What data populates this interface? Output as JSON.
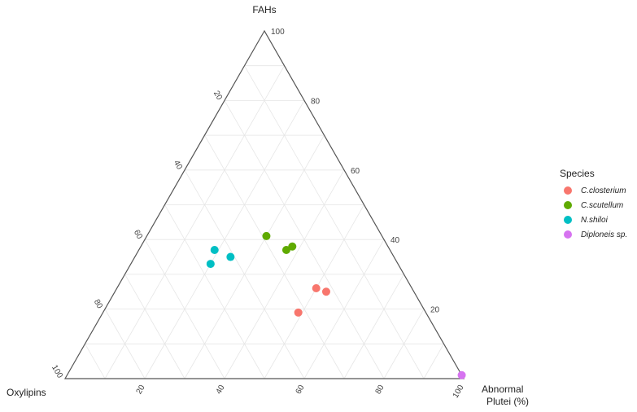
{
  "chart_data": {
    "type": "scatter",
    "subtype": "ternary",
    "title": "",
    "vertices": {
      "top": "FAHs",
      "left": "Oxylipins",
      "right_line1": "Abnormal",
      "right_line2": "Plutei (%)"
    },
    "ticks": [
      20,
      40,
      60,
      80,
      100
    ],
    "grid": true,
    "legend": {
      "title": "Species",
      "placement": "right",
      "entries": [
        {
          "name": "C.closterium",
          "color": "#F8766D"
        },
        {
          "name": "C.scutellum",
          "color": "#5FAA00"
        },
        {
          "name": "N.shiloi",
          "color": "#00BFC4"
        },
        {
          "name": "Diploneis sp.",
          "color": "#D673F0"
        }
      ]
    },
    "series": [
      {
        "name": "C.closterium",
        "color": "#F8766D",
        "points": [
          {
            "FAHs": 19,
            "Oxylipins": 32,
            "Abnormal": 49
          },
          {
            "FAHs": 26,
            "Oxylipins": 24,
            "Abnormal": 50
          },
          {
            "FAHs": 25,
            "Oxylipins": 22,
            "Abnormal": 53
          }
        ]
      },
      {
        "name": "C.scutellum",
        "color": "#5FAA00",
        "points": [
          {
            "FAHs": 41,
            "Oxylipins": 29,
            "Abnormal": 30
          },
          {
            "FAHs": 37,
            "Oxylipins": 26,
            "Abnormal": 37
          },
          {
            "FAHs": 38,
            "Oxylipins": 24,
            "Abnormal": 38
          }
        ]
      },
      {
        "name": "N.shiloi",
        "color": "#00BFC4",
        "points": [
          {
            "FAHs": 37,
            "Oxylipins": 44,
            "Abnormal": 19
          },
          {
            "FAHs": 35,
            "Oxylipins": 41,
            "Abnormal": 24
          },
          {
            "FAHs": 33,
            "Oxylipins": 47,
            "Abnormal": 20
          }
        ]
      },
      {
        "name": "Diploneis sp.",
        "color": "#D673F0",
        "points": [
          {
            "FAHs": 1,
            "Oxylipins": 0,
            "Abnormal": 99
          }
        ]
      }
    ]
  }
}
